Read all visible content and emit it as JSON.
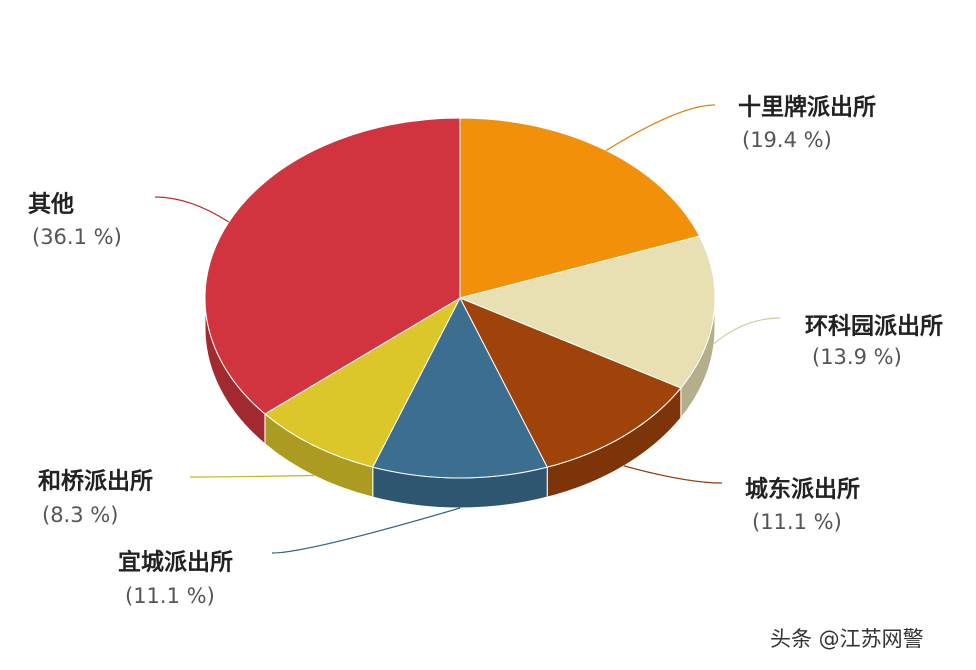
{
  "chart_data": {
    "type": "pie",
    "categories": [
      "十里牌派出所",
      "环科园派出所",
      "城东派出所",
      "宜城派出所",
      "和桥派出所",
      "其他"
    ],
    "values": [
      19.4,
      13.9,
      11.1,
      11.1,
      8.3,
      36.1
    ],
    "value_labels": [
      "(19.4 %)",
      "(13.9 %)",
      "(11.1 %)",
      "(11.1 %)",
      "(8.3 %)",
      "(36.1 %)"
    ],
    "colors": [
      "#f39009",
      "#e8dfb2",
      "#a0430a",
      "#3b6e8f",
      "#dcc72a",
      "#d1343f"
    ]
  },
  "watermark": "头条 @江苏网警"
}
